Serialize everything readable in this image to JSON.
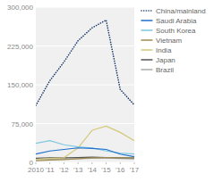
{
  "chart_data": {
    "type": "line",
    "x": [
      2010,
      2011,
      2012,
      2013,
      2014,
      2015,
      2016,
      2017
    ],
    "xlim": [
      2010,
      2017
    ],
    "xticks": [
      2010,
      {
        "value": 2011,
        "label": "'11"
      },
      {
        "value": 2012,
        "label": "'12"
      },
      {
        "value": 2013,
        "label": "'13"
      },
      {
        "value": 2014,
        "label": "'14"
      },
      {
        "value": 2015,
        "label": "'15"
      },
      {
        "value": 2016,
        "label": "'16"
      },
      {
        "value": 2017,
        "label": "'17"
      }
    ],
    "ylim": [
      0,
      300000
    ],
    "yticks": [
      0,
      {
        "value": 75000,
        "label": "75,000"
      },
      {
        "value": 150000,
        "label": "150,000"
      },
      {
        "value": 225000,
        "label": "225,000"
      },
      {
        "value": 300000,
        "label": "300,000"
      }
    ],
    "grid": true,
    "legend": "right",
    "series": [
      {
        "name": "China/mainland",
        "color": "#1a3a6b",
        "line_style": "dotted",
        "values": [
          110000,
          158000,
          194000,
          235000,
          260000,
          275000,
          141000,
          111000
        ]
      },
      {
        "name": "Saudi Arabia",
        "color": "#1e6fcc",
        "line_style": "solid",
        "values": [
          16000,
          22000,
          25000,
          28000,
          27000,
          25000,
          16000,
          11000
        ]
      },
      {
        "name": "South Korea",
        "color": "#7ec8e3",
        "line_style": "solid",
        "values": [
          37000,
          42000,
          34000,
          30000,
          28000,
          22000,
          18000,
          16000
        ]
      },
      {
        "name": "Vietnam",
        "color": "#a08c50",
        "line_style": "solid",
        "values": [
          3000,
          4500,
          5500,
          7000,
          9000,
          9500,
          9000,
          8500
        ]
      },
      {
        "name": "India",
        "color": "#d4c97a",
        "line_style": "solid",
        "values": [
          6000,
          7500,
          9000,
          28000,
          62000,
          70000,
          58000,
          42000
        ]
      },
      {
        "name": "Japan",
        "color": "#555555",
        "line_style": "solid",
        "values": [
          8000,
          9000,
          9000,
          9500,
          10000,
          9500,
          9000,
          8500
        ]
      },
      {
        "name": "Brazil",
        "color": "#aaaaaa",
        "line_style": "solid",
        "values": [
          5000,
          6000,
          6500,
          7000,
          8000,
          8500,
          7500,
          6500
        ]
      }
    ]
  }
}
